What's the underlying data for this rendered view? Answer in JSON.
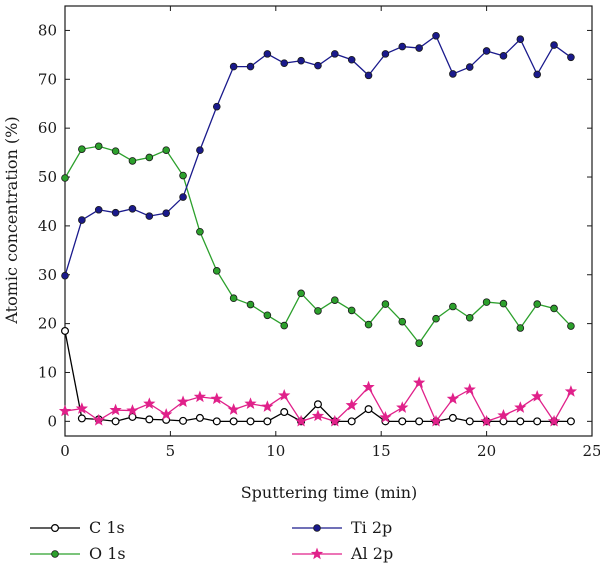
{
  "chart_data": {
    "type": "line",
    "xlabel": "Sputtering time (min)",
    "ylabel": "Atomic concentration (%)",
    "xlim": [
      0,
      25
    ],
    "ylim": [
      -3,
      85
    ],
    "xticks": [
      0,
      5,
      10,
      15,
      20,
      25
    ],
    "yticks": [
      0,
      10,
      20,
      30,
      40,
      50,
      60,
      70,
      80
    ],
    "grid": false,
    "legend_position": "bottom",
    "series": [
      {
        "name": "C 1s",
        "color": "#000000",
        "marker": "circle-open",
        "x": [
          0,
          0.8,
          1.6,
          2.4,
          3.2,
          4.0,
          4.8,
          5.6,
          6.4,
          7.2,
          8.0,
          8.8,
          9.6,
          10.4,
          11.2,
          12.0,
          12.8,
          13.6,
          14.4,
          15.2,
          16.0,
          16.8,
          17.6,
          18.4,
          19.2,
          20.0,
          20.8,
          21.6,
          22.4,
          23.2,
          24.0
        ],
        "y": [
          18.5,
          0.6,
          0.4,
          0.0,
          0.9,
          0.4,
          0.3,
          0.1,
          0.7,
          0.0,
          0.0,
          0.0,
          0.0,
          1.9,
          0.0,
          3.5,
          0.0,
          0.0,
          2.5,
          0.0,
          0.0,
          0.0,
          0.0,
          0.7,
          0.0,
          0.0,
          0.0,
          0.0,
          0.0,
          0.0,
          0.0
        ]
      },
      {
        "name": "O 1s",
        "color": "#2ca02c",
        "marker": "circle",
        "x": [
          0,
          0.8,
          1.6,
          2.4,
          3.2,
          4.0,
          4.8,
          5.6,
          6.4,
          7.2,
          8.0,
          8.8,
          9.6,
          10.4,
          11.2,
          12.0,
          12.8,
          13.6,
          14.4,
          15.2,
          16.0,
          16.8,
          17.6,
          18.4,
          19.2,
          20.0,
          20.8,
          21.6,
          22.4,
          23.2,
          24.0
        ],
        "y": [
          49.8,
          55.7,
          56.3,
          55.3,
          53.3,
          54.0,
          55.5,
          50.3,
          38.8,
          30.8,
          25.2,
          23.9,
          21.7,
          19.6,
          26.2,
          22.6,
          24.8,
          22.7,
          19.8,
          24.0,
          20.4,
          16.0,
          21.0,
          23.5,
          21.2,
          24.4,
          24.1,
          19.1,
          24.0,
          23.1,
          19.5
        ]
      },
      {
        "name": "Ti 2p",
        "color": "#1a1a8c",
        "marker": "circle",
        "x": [
          0,
          0.8,
          1.6,
          2.4,
          3.2,
          4.0,
          4.8,
          5.6,
          6.4,
          7.2,
          8.0,
          8.8,
          9.6,
          10.4,
          11.2,
          12.0,
          12.8,
          13.6,
          14.4,
          15.2,
          16.0,
          16.8,
          17.6,
          18.4,
          19.2,
          20.0,
          20.8,
          21.6,
          22.4,
          23.2,
          24.0
        ],
        "y": [
          29.8,
          41.2,
          43.3,
          42.7,
          43.5,
          42.0,
          42.6,
          45.9,
          55.5,
          64.4,
          72.6,
          72.6,
          75.2,
          73.3,
          73.8,
          72.8,
          75.2,
          74.0,
          70.8,
          75.2,
          76.7,
          76.4,
          78.9,
          71.1,
          72.5,
          75.8,
          74.8,
          78.2,
          71.0,
          77.0,
          74.5
        ]
      },
      {
        "name": "Al 2p",
        "color": "#e0218a",
        "marker": "star",
        "x": [
          0,
          0.8,
          1.6,
          2.4,
          3.2,
          4.0,
          4.8,
          5.6,
          6.4,
          7.2,
          8.0,
          8.8,
          9.6,
          10.4,
          11.2,
          12.0,
          12.8,
          13.6,
          14.4,
          15.2,
          16.0,
          16.8,
          17.6,
          18.4,
          19.2,
          20.0,
          20.8,
          21.6,
          22.4,
          23.2,
          24.0
        ],
        "y": [
          2.1,
          2.6,
          0.2,
          2.3,
          2.2,
          3.6,
          1.4,
          4.0,
          5.0,
          4.6,
          2.4,
          3.6,
          3.0,
          5.3,
          0.0,
          1.1,
          0.0,
          3.3,
          7.0,
          0.8,
          2.8,
          7.9,
          0.0,
          4.6,
          6.5,
          0.0,
          1.2,
          2.8,
          5.1,
          0.0,
          6.1
        ]
      }
    ]
  }
}
